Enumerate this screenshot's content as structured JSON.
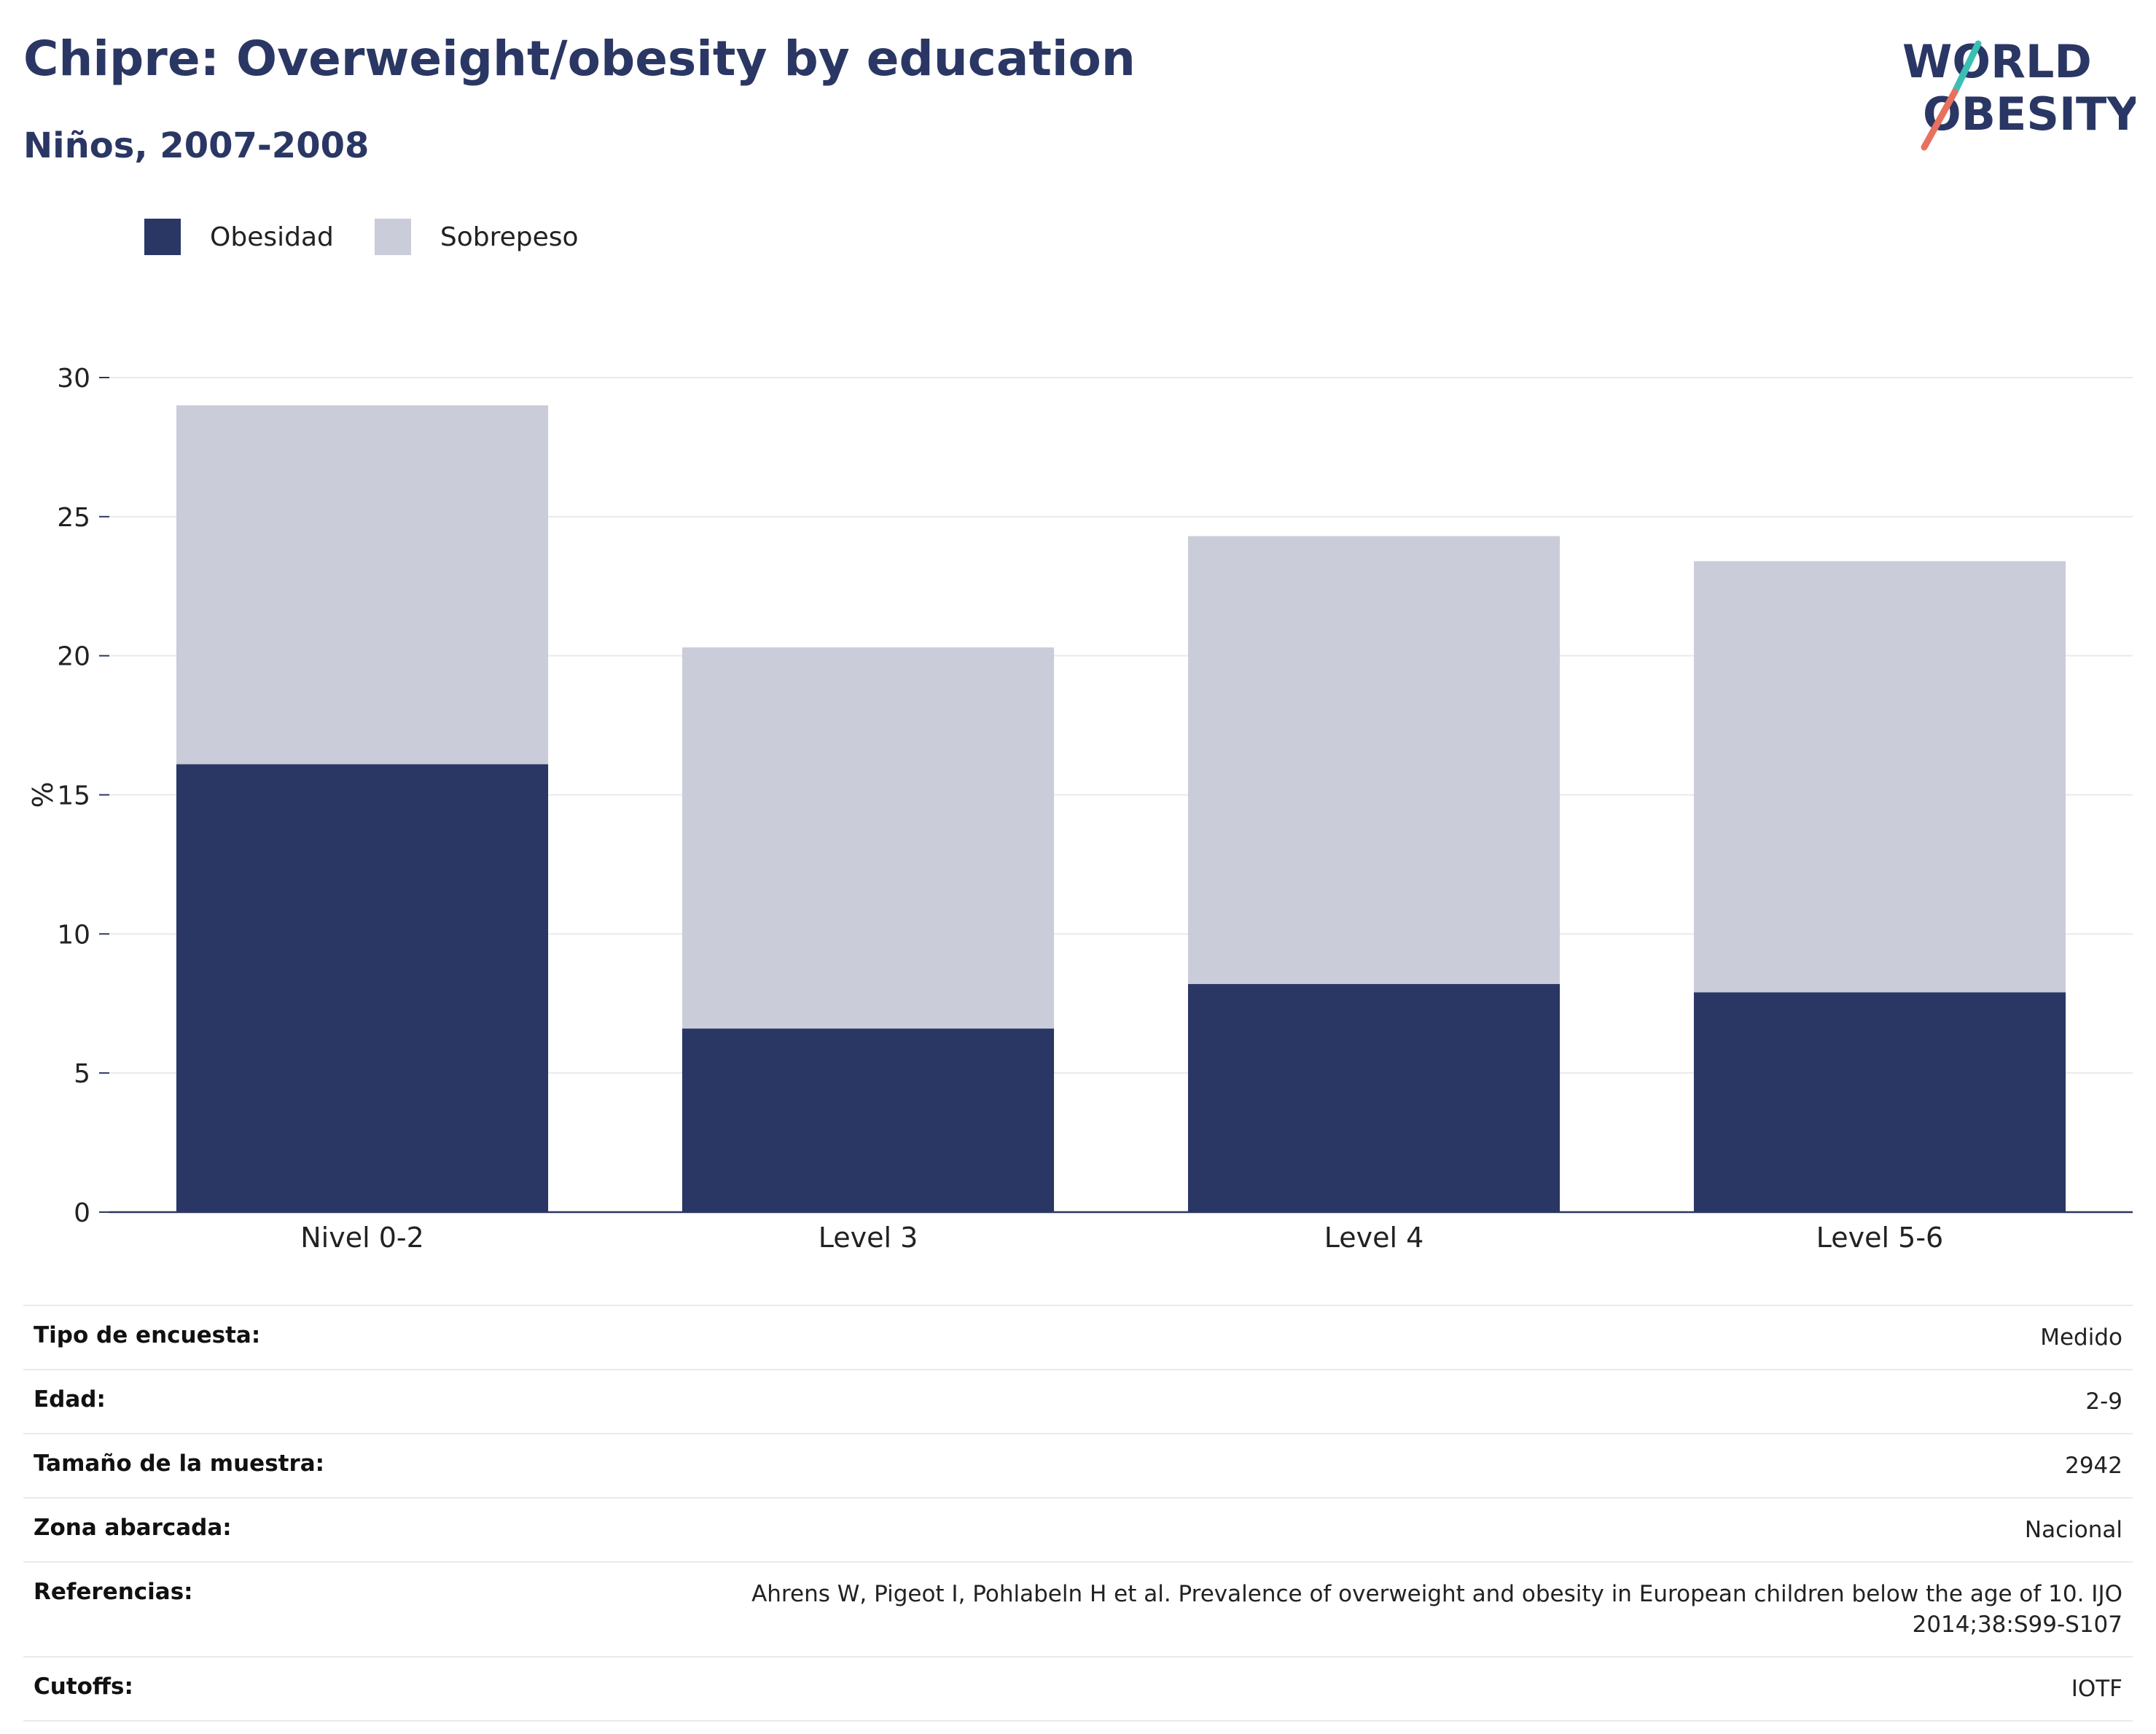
{
  "header": {
    "title": "Chipre: Overweight/obesity by education",
    "subtitle": "Niños, 2007-2008"
  },
  "logo": {
    "line1": "WORLD",
    "line2": "OBESITY"
  },
  "colors": {
    "obesity": "#2a3764",
    "overweight": "#cacdd9",
    "title": "#2a3764",
    "logo_teal": "#3bbfb5",
    "logo_coral": "#e8705f"
  },
  "chart_data": {
    "type": "bar",
    "stacked": true,
    "categories": [
      "Nivel 0-2",
      "Level 3",
      "Level 4",
      "Level 5-6"
    ],
    "series": [
      {
        "name": "Obesidad",
        "values": [
          16.1,
          6.6,
          8.2,
          7.9
        ],
        "color": "#2a3764"
      },
      {
        "name": "Sobrepeso",
        "values": [
          12.9,
          13.7,
          16.1,
          15.5
        ],
        "color": "#cacdd9"
      }
    ],
    "ylabel": "%",
    "ylim": [
      0,
      30
    ],
    "yticks": [
      0,
      5,
      10,
      15,
      20,
      25,
      30
    ],
    "grid": true,
    "legend_position": "top-left"
  },
  "info": [
    {
      "label": "Tipo de encuesta:",
      "value": "Medido"
    },
    {
      "label": "Edad:",
      "value": "2-9"
    },
    {
      "label": "Tamaño de la muestra:",
      "value": "2942"
    },
    {
      "label": "Zona abarcada:",
      "value": "Nacional"
    },
    {
      "label": "Referencias:",
      "value": "Ahrens W, Pigeot I, Pohlabeln H et al. Prevalence of overweight and obesity in European children below the age of 10. IJO 2014;38:S99-S107"
    },
    {
      "label": "Cutoffs:",
      "value": "IOTF"
    }
  ]
}
